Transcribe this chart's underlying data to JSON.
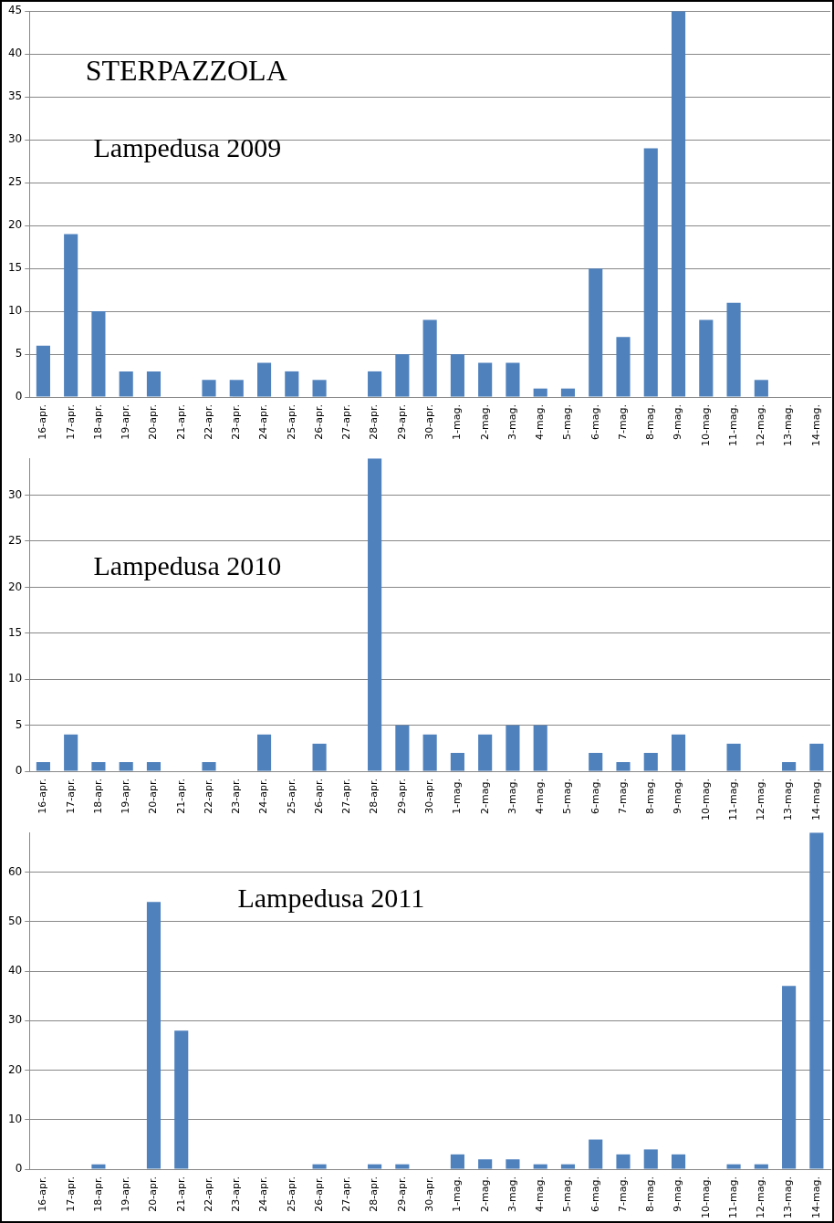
{
  "chart_data": [
    {
      "type": "bar",
      "annotations": [
        "STERPAZZOLA",
        "Lampedusa 2009"
      ],
      "categories": [
        "16-apr.",
        "17-apr.",
        "18-apr.",
        "19-apr.",
        "20-apr.",
        "21-apr.",
        "22-apr.",
        "23-apr.",
        "24-apr.",
        "25-apr.",
        "26-apr.",
        "27-apr.",
        "28-apr.",
        "29-apr.",
        "30-apr.",
        "1-mag.",
        "2-mag.",
        "3-mag.",
        "4-mag.",
        "5-mag.",
        "6-mag.",
        "7-mag.",
        "8-mag.",
        "9-mag.",
        "10-mag.",
        "11-mag.",
        "12-mag.",
        "13-mag.",
        "14-mag."
      ],
      "values": [
        6,
        19,
        10,
        3,
        3,
        0,
        2,
        2,
        4,
        3,
        2,
        0,
        3,
        5,
        9,
        5,
        4,
        4,
        1,
        1,
        15,
        7,
        29,
        45,
        9,
        11,
        2,
        0,
        0
      ],
      "color": "#4f81bd",
      "ylim": [
        0,
        45
      ],
      "yticks": [
        0,
        5,
        10,
        15,
        20,
        25,
        30,
        35,
        40,
        45
      ],
      "grid": "y"
    },
    {
      "type": "bar",
      "annotations": [
        "Lampedusa 2010"
      ],
      "categories": [
        "16-apr.",
        "17-apr.",
        "18-apr.",
        "19-apr.",
        "20-apr.",
        "21-apr.",
        "22-apr.",
        "23-apr.",
        "24-apr.",
        "25-apr.",
        "26-apr.",
        "27-apr.",
        "28-apr.",
        "29-apr.",
        "30-apr.",
        "1-mag.",
        "2-mag.",
        "3-mag.",
        "4-mag.",
        "5-mag.",
        "6-mag.",
        "7-mag.",
        "8-mag.",
        "9-mag.",
        "10-mag.",
        "11-mag.",
        "12-mag.",
        "13-mag.",
        "14-mag."
      ],
      "values": [
        1,
        4,
        1,
        1,
        1,
        0,
        1,
        0,
        4,
        0,
        3,
        0,
        34,
        5,
        4,
        2,
        4,
        5,
        5,
        0,
        2,
        1,
        2,
        4,
        0,
        3,
        0,
        1,
        3
      ],
      "color": "#4f81bd",
      "ylim": [
        0,
        34
      ],
      "yticks": [
        0,
        5,
        10,
        15,
        20,
        25,
        30
      ],
      "grid": "y"
    },
    {
      "type": "bar",
      "annotations": [
        "Lampedusa 2011"
      ],
      "categories": [
        "16-apr.",
        "17-apr.",
        "18-apr.",
        "19-apr.",
        "20-apr.",
        "21-apr.",
        "22-apr.",
        "23-apr.",
        "24-apr.",
        "25-apr.",
        "26-apr.",
        "27-apr.",
        "28-apr.",
        "29-apr.",
        "30-apr.",
        "1-mag.",
        "2-mag.",
        "3-mag.",
        "4-mag.",
        "5-mag.",
        "6-mag.",
        "7-mag.",
        "8-mag.",
        "9-mag.",
        "10-mag.",
        "11-mag.",
        "12-mag.",
        "13-mag.",
        "14-mag."
      ],
      "values": [
        0,
        0,
        1,
        0,
        54,
        28,
        0,
        0,
        0,
        0,
        1,
        0,
        1,
        1,
        0,
        3,
        2,
        2,
        1,
        1,
        6,
        3,
        4,
        3,
        0,
        1,
        1,
        37,
        68
      ],
      "color": "#4f81bd",
      "ylim": [
        0,
        68
      ],
      "yticks": [
        0,
        10,
        20,
        30,
        40,
        50,
        60
      ],
      "grid": "y"
    }
  ]
}
